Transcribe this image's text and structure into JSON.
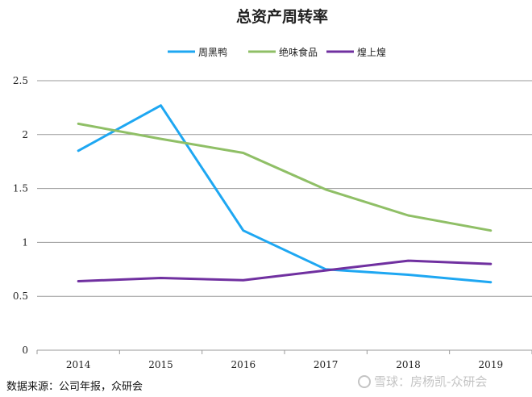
{
  "chart_data": {
    "type": "line",
    "title": "总资产周转率",
    "x": [
      "2014",
      "2015",
      "2016",
      "2017",
      "2018",
      "2019"
    ],
    "xlabel": "",
    "ylabel": "",
    "ylim": [
      0,
      2.5
    ],
    "yticks": [
      0,
      0.5,
      1,
      1.5,
      2,
      2.5
    ],
    "ytick_labels": [
      "0",
      "0.5",
      "1",
      "1.5",
      "2",
      "2.5"
    ],
    "grid": true,
    "legend_position": "top-center",
    "series": [
      {
        "name": "周黑鸭",
        "color": "#1ea7f2",
        "values": [
          1.85,
          2.27,
          1.11,
          0.75,
          0.7,
          0.63
        ]
      },
      {
        "name": "绝味食品",
        "color": "#8fbf66",
        "values": [
          2.1,
          1.96,
          1.83,
          1.49,
          1.25,
          1.11
        ]
      },
      {
        "name": "煌上煌",
        "color": "#7030a0",
        "values": [
          0.64,
          0.67,
          0.65,
          0.74,
          0.83,
          0.8
        ]
      }
    ]
  },
  "footer": {
    "source": "数据来源：公司年报，众研会",
    "watermark": "雪球：房杨凯-众研会"
  }
}
